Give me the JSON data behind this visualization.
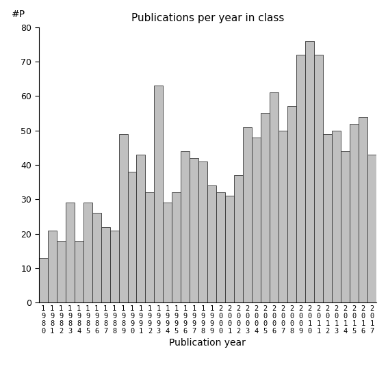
{
  "title": "Publications per year in class",
  "xlabel": "Publication year",
  "ylabel": "#P",
  "bar_color": "#c0c0c0",
  "bar_edge_color": "#333333",
  "years": [
    1980,
    1981,
    1982,
    1983,
    1984,
    1985,
    1986,
    1987,
    1988,
    1989,
    1990,
    1991,
    1992,
    1993,
    1994,
    1995,
    1996,
    1997,
    1998,
    1999,
    2000,
    2001,
    2002,
    2003,
    2004,
    2005,
    2006,
    2007,
    2008,
    2009,
    2010,
    2011,
    2012,
    2013,
    2014,
    2015,
    2016,
    2017
  ],
  "values": [
    13,
    21,
    18,
    29,
    18,
    29,
    26,
    22,
    21,
    49,
    38,
    43,
    32,
    63,
    29,
    32,
    44,
    42,
    41,
    34,
    32,
    31,
    37,
    51,
    48,
    55,
    61,
    50,
    57,
    72,
    76,
    72,
    49,
    50,
    44,
    52,
    54,
    43
  ],
  "ylim": [
    0,
    80
  ],
  "yticks": [
    0,
    10,
    20,
    30,
    40,
    50,
    60,
    70,
    80
  ],
  "background_color": "#ffffff",
  "figsize": [
    5.67,
    5.67
  ],
  "dpi": 100
}
